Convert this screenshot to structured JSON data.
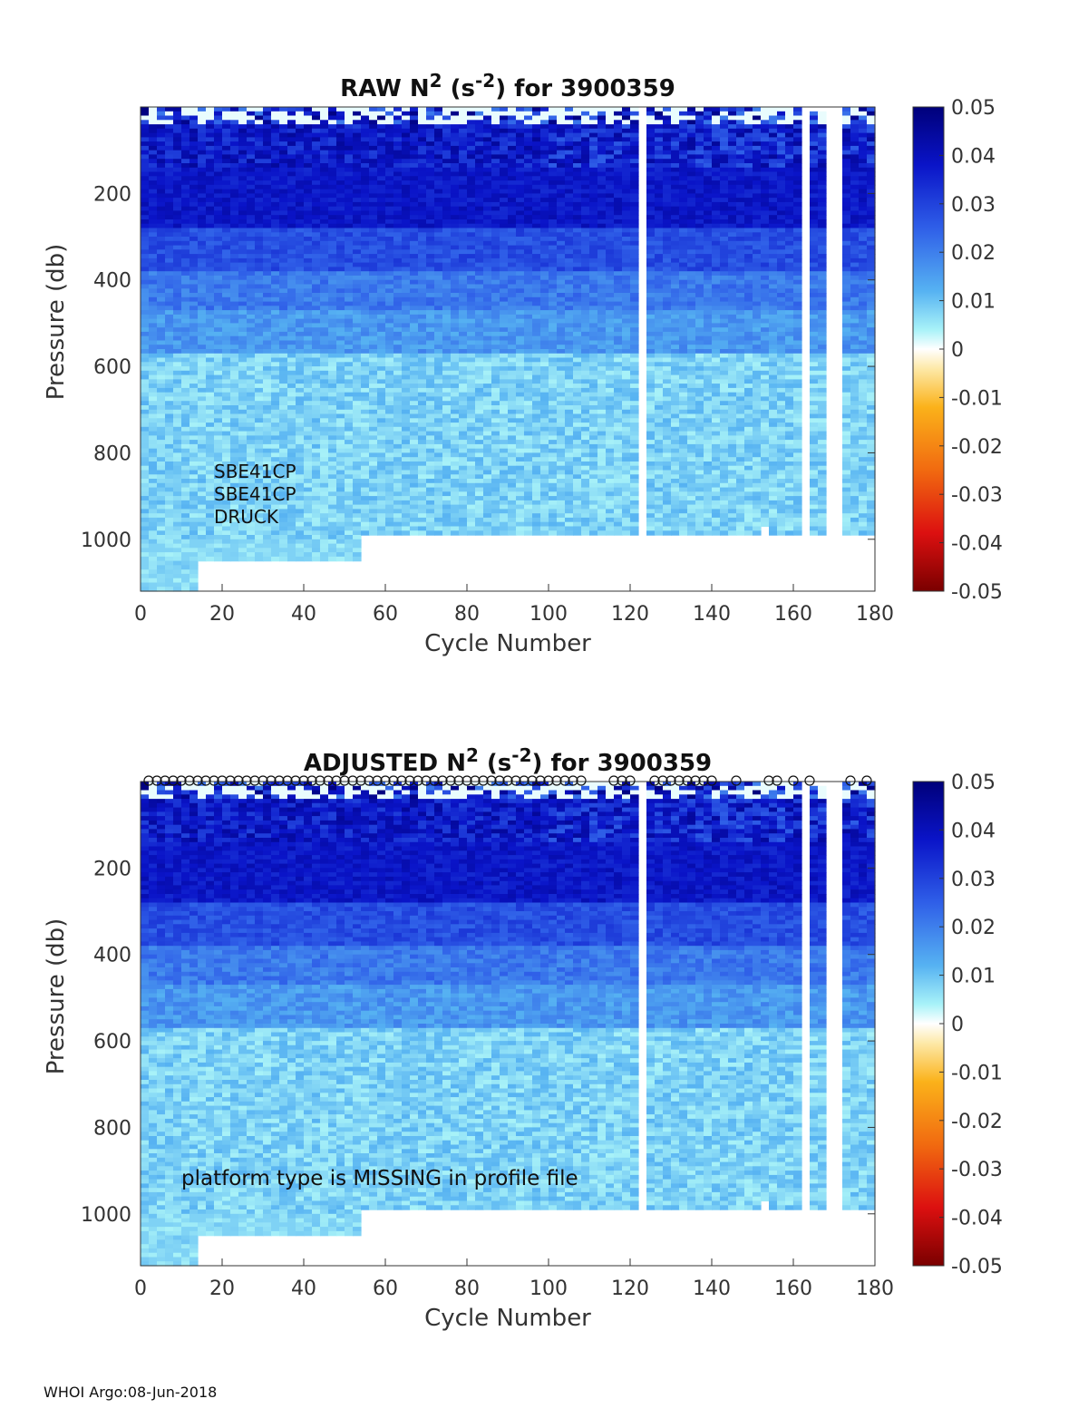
{
  "footer": "WHOI Argo:08-Jun-2018",
  "colors": {
    "deep": "#0a0f78",
    "strong": "#1f30e0",
    "mid": "#3d72e6",
    "light": "#5aaef0",
    "pale": "#8fe4f6",
    "near_zero": "#f6f3c8",
    "axis": "#333333"
  },
  "chart_data": [
    {
      "type": "heatmap",
      "title_main": "RAW N",
      "title_sup": "2",
      "title_unit_open": " (s",
      "title_unit_sup": "-2",
      "title_rest": ") for 3900359",
      "xlabel": "Cycle Number",
      "ylabel": "Pressure (db)",
      "xlim": [
        0,
        180
      ],
      "ylim": [
        1120,
        0
      ],
      "xticks": [
        "0",
        "20",
        "40",
        "60",
        "80",
        "100",
        "120",
        "140",
        "160",
        "180"
      ],
      "yticks": [
        "200",
        "400",
        "600",
        "800",
        "1000"
      ],
      "colorbar": {
        "range": [
          -0.05,
          0.05
        ],
        "ticks": [
          "0.05",
          "0.04",
          "0.03",
          "0.02",
          "0.01",
          "0",
          "-0.01",
          "-0.02",
          "-0.03",
          "-0.04",
          "-0.05"
        ]
      },
      "annotations": [
        "SBE41CP",
        "SBE41CP",
        "DRUCK"
      ],
      "data_gaps_cycles": [
        [
          121,
          123
        ],
        [
          161,
          164
        ],
        [
          168,
          171
        ]
      ],
      "max_depth_by_cycle_db": [
        [
          0,
          1120
        ],
        [
          14,
          1050
        ],
        [
          53,
          990
        ]
      ],
      "layer_values_s-2": [
        {
          "pressure_db": [
            0,
            40
          ],
          "value": 0.001
        },
        {
          "pressure_db": [
            40,
            140
          ],
          "value": 0.045
        },
        {
          "pressure_db": [
            140,
            280
          ],
          "value": 0.038
        },
        {
          "pressure_db": [
            280,
            380
          ],
          "value": 0.028
        },
        {
          "pressure_db": [
            380,
            470
          ],
          "value": 0.021
        },
        {
          "pressure_db": [
            470,
            570
          ],
          "value": 0.016
        },
        {
          "pressure_db": [
            570,
            1000
          ],
          "value": 0.008
        }
      ],
      "show_markers": false
    },
    {
      "type": "heatmap",
      "title_main": "ADJUSTED N",
      "title_sup": "2",
      "title_unit_open": " (s",
      "title_unit_sup": "-2",
      "title_rest": ") for 3900359",
      "xlabel": "Cycle Number",
      "ylabel": "Pressure (db)",
      "xlim": [
        0,
        180
      ],
      "ylim": [
        1120,
        0
      ],
      "xticks": [
        "0",
        "20",
        "40",
        "60",
        "80",
        "100",
        "120",
        "140",
        "160",
        "180"
      ],
      "yticks": [
        "200",
        "400",
        "600",
        "800",
        "1000"
      ],
      "colorbar": {
        "range": [
          -0.05,
          0.05
        ],
        "ticks": [
          "0.05",
          "0.04",
          "0.03",
          "0.02",
          "0.01",
          "0",
          "-0.01",
          "-0.02",
          "-0.03",
          "-0.04",
          "-0.05"
        ]
      },
      "annotations": [
        "platform type is MISSING in profile file"
      ],
      "data_gaps_cycles": [
        [
          121,
          123
        ],
        [
          161,
          164
        ],
        [
          168,
          171
        ]
      ],
      "max_depth_by_cycle_db": [
        [
          0,
          1120
        ],
        [
          14,
          1050
        ],
        [
          53,
          990
        ]
      ],
      "layer_values_s-2": [
        {
          "pressure_db": [
            0,
            40
          ],
          "value": 0.001
        },
        {
          "pressure_db": [
            40,
            140
          ],
          "value": 0.045
        },
        {
          "pressure_db": [
            140,
            280
          ],
          "value": 0.038
        },
        {
          "pressure_db": [
            280,
            380
          ],
          "value": 0.028
        },
        {
          "pressure_db": [
            380,
            470
          ],
          "value": 0.021
        },
        {
          "pressure_db": [
            470,
            570
          ],
          "value": 0.016
        },
        {
          "pressure_db": [
            570,
            1000
          ],
          "value": 0.008
        }
      ],
      "show_markers": true
    }
  ]
}
